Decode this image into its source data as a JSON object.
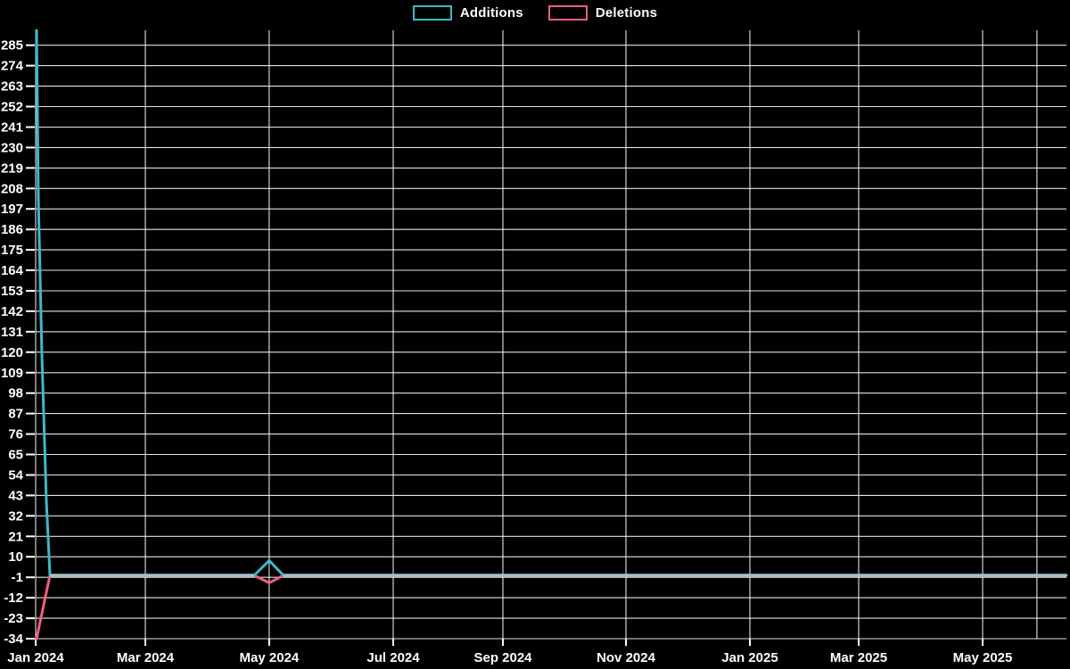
{
  "chart_data": {
    "type": "line",
    "title": "",
    "background_color": "#000000",
    "grid": {
      "horizontal": true,
      "vertical": true,
      "color": "#f2f2f2"
    },
    "axis_text_color": "#ffffff",
    "legend": {
      "position": "top-center"
    },
    "x_axis_note": "time axis, Jan 2024 to mid-Jun 2025; f = fraction of axis width",
    "x_ticks": [
      {
        "label": "Jan 2024",
        "f": 0.0
      },
      {
        "label": "Mar 2024",
        "f": 0.1064
      },
      {
        "label": "May 2024",
        "f": 0.2266
      },
      {
        "label": "Jul 2024",
        "f": 0.3469
      },
      {
        "label": "Sep 2024",
        "f": 0.4533
      },
      {
        "label": "Nov 2024",
        "f": 0.5727
      },
      {
        "label": "Jan 2025",
        "f": 0.6929
      },
      {
        "label": "Mar 2025",
        "f": 0.7984
      },
      {
        "label": "May 2025",
        "f": 0.9187
      },
      {
        "label": "",
        "f": 0.9714
      }
    ],
    "y_axis": {
      "min": -34,
      "max": 293,
      "tick_step": 11
    },
    "y_tick_labels": [
      285,
      274,
      263,
      252,
      241,
      230,
      219,
      208,
      197,
      186,
      175,
      164,
      153,
      142,
      131,
      120,
      109,
      98,
      87,
      76,
      65,
      54,
      43,
      32,
      21,
      10,
      -1,
      -12,
      -23,
      -34
    ],
    "series": [
      {
        "name": "Additions",
        "color": "#3fb8c9",
        "points": [
          [
            0.0009,
            293
          ],
          [
            0.0026,
            203
          ],
          [
            0.006,
            120
          ],
          [
            0.0104,
            40
          ],
          [
            0.0138,
            0
          ],
          [
            0.2119,
            0
          ],
          [
            0.2266,
            8
          ],
          [
            0.2404,
            0
          ],
          [
            1.0,
            0
          ]
        ],
        "summary": "+293 in first week of Jan 2024, +8 spike in first week of May 2024, otherwise 0"
      },
      {
        "name": "Deletions",
        "color": "#ef5f7d",
        "points": [
          [
            0.0009,
            -34
          ],
          [
            0.0138,
            0
          ],
          [
            0.2119,
            0
          ],
          [
            0.2266,
            -4
          ],
          [
            0.2404,
            0
          ],
          [
            1.0,
            0
          ]
        ],
        "summary": "-34 in first week of Jan 2024, -4 dip in first week of May 2024, otherwise 0"
      }
    ],
    "overlap_color": "#a6c0cb",
    "overlap_segments": [
      [
        0.0138,
        0.2119
      ],
      [
        0.2404,
        1.0
      ]
    ]
  }
}
